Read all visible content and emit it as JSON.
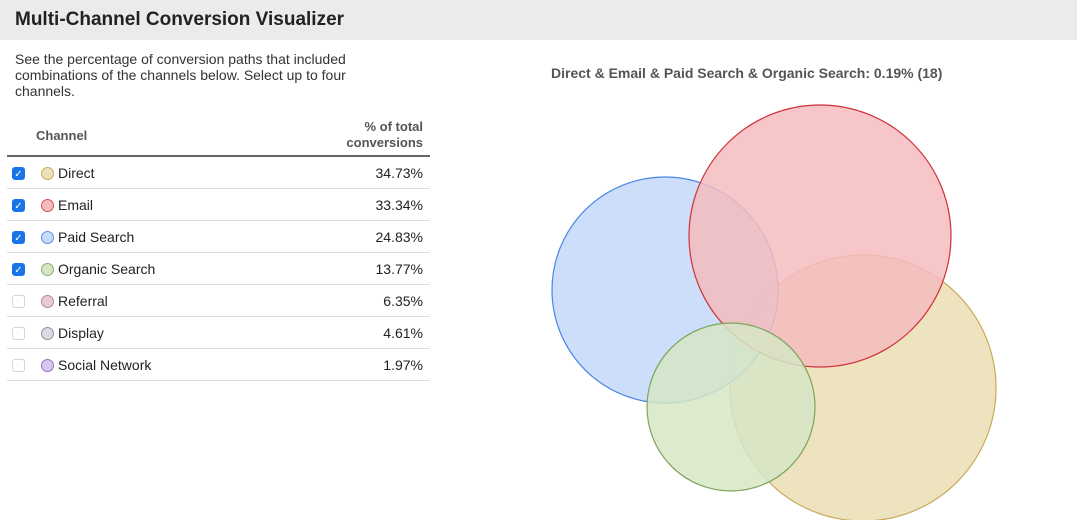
{
  "header": {
    "title": "Multi-Channel Conversion Visualizer"
  },
  "description": "See the percentage of conversion paths that included combinations of the channels below. Select up to four channels.",
  "table": {
    "col_channel": "Channel",
    "col_pct_line1": "% of total",
    "col_pct_line2": "conversions",
    "rows": [
      {
        "label": "Direct",
        "value": "34.73%",
        "checked": true,
        "fill": "#ebe0b8",
        "stroke": "#c9aa5a"
      },
      {
        "label": "Email",
        "value": "33.34%",
        "checked": true,
        "fill": "#f4bcbe",
        "stroke": "#d64f55"
      },
      {
        "label": "Paid Search",
        "value": "24.83%",
        "checked": true,
        "fill": "#c8dafb",
        "stroke": "#5a8fe6"
      },
      {
        "label": "Organic Search",
        "value": "13.77%",
        "checked": true,
        "fill": "#d6e6c6",
        "stroke": "#8aaf6a"
      },
      {
        "label": "Referral",
        "value": "6.35%",
        "checked": false,
        "fill": "#e6ccd0",
        "stroke": "#b8878f"
      },
      {
        "label": "Display",
        "value": "4.61%",
        "checked": false,
        "fill": "#d8dbe2",
        "stroke": "#8c93a3"
      },
      {
        "label": "Social Network",
        "value": "1.97%",
        "checked": false,
        "fill": "#d8c7ee",
        "stroke": "#9571c4"
      }
    ]
  },
  "venn": {
    "title": "Direct & Email & Paid Search & Organic Search: 0.19% (18)"
  }
}
